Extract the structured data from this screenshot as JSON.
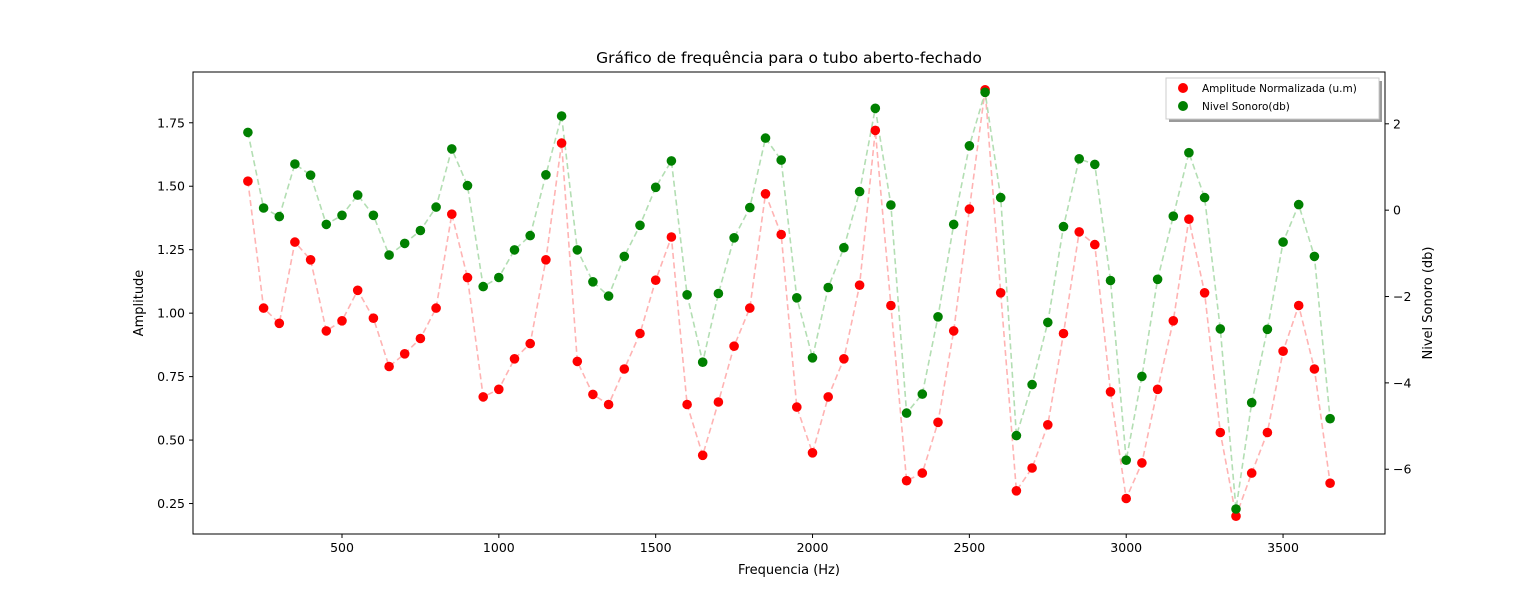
{
  "chart_data": {
    "type": "scatter",
    "title": "Gráfico de frequência para o tubo aberto-fechado",
    "xlabel": "Frequencia (Hz)",
    "ylabel": "Amplitude",
    "ylabel_right": "Nivel Sonoro (db)",
    "xlim": [
      25,
      3825
    ],
    "ylim": [
      0.13,
      1.95
    ],
    "ylim_right": [
      -7.5,
      3.2
    ],
    "x_ticks": [
      500,
      1000,
      1500,
      2000,
      2500,
      3000,
      3500
    ],
    "y_ticks": [
      0.25,
      0.5,
      0.75,
      1.0,
      1.25,
      1.5,
      1.75
    ],
    "y_ticks_right": [
      -6,
      -4,
      -2,
      0,
      2
    ],
    "x_tick_labels": [
      "500",
      "1000",
      "1500",
      "2000",
      "2500",
      "3000",
      "3500"
    ],
    "y_tick_labels": [
      "0.25",
      "0.50",
      "0.75",
      "1.00",
      "1.25",
      "1.50",
      "1.75"
    ],
    "y_tick_labels_right": [
      "−6",
      "−4",
      "−2",
      "0",
      "2"
    ],
    "grid": false,
    "legend_position": "top-right",
    "x": [
      200,
      250,
      300,
      350,
      400,
      450,
      500,
      550,
      600,
      650,
      700,
      750,
      800,
      850,
      900,
      950,
      1000,
      1050,
      1100,
      1150,
      1200,
      1250,
      1300,
      1350,
      1400,
      1450,
      1500,
      1550,
      1600,
      1650,
      1700,
      1750,
      1800,
      1850,
      1900,
      1950,
      2000,
      2050,
      2100,
      2150,
      2200,
      2250,
      2300,
      2350,
      2400,
      2450,
      2500,
      2550,
      2600,
      2650,
      2700,
      2750,
      2800,
      2850,
      2900,
      2950,
      3000,
      3050,
      3100,
      3150,
      3200,
      3250,
      3300,
      3350,
      3400,
      3450,
      3500,
      3550,
      3600,
      3650
    ],
    "series": [
      {
        "name": "Amplitude Normalizada (u.m)",
        "axis": "left",
        "color": "#ff0000",
        "line_color": "#ffb3b3",
        "values": [
          1.52,
          1.02,
          0.96,
          1.28,
          1.21,
          0.93,
          0.97,
          1.09,
          0.98,
          0.79,
          0.84,
          0.9,
          1.02,
          1.39,
          1.14,
          0.67,
          0.7,
          0.82,
          0.88,
          1.21,
          1.67,
          0.81,
          0.68,
          0.64,
          0.78,
          0.92,
          1.13,
          1.3,
          0.64,
          0.44,
          0.65,
          0.87,
          1.02,
          1.47,
          1.31,
          0.63,
          0.45,
          0.67,
          0.82,
          1.11,
          1.72,
          1.03,
          0.34,
          0.37,
          0.57,
          0.93,
          1.41,
          1.88,
          1.08,
          0.3,
          0.39,
          0.56,
          0.92,
          1.32,
          1.27,
          0.69,
          0.27,
          0.41,
          0.7,
          0.97,
          1.37,
          1.08,
          0.53,
          0.2,
          0.37,
          0.53,
          0.85,
          1.03,
          0.78,
          0.33
        ]
      },
      {
        "name": "Nivel Sonoro(db)",
        "axis": "right",
        "color": "#008000",
        "line_color": "#b3deb3",
        "values": [
          1.8,
          0.05,
          -0.15,
          1.07,
          0.81,
          -0.33,
          -0.12,
          0.35,
          -0.12,
          -1.04,
          -0.77,
          -0.47,
          0.07,
          1.42,
          0.57,
          -1.77,
          -1.56,
          -0.92,
          -0.59,
          0.82,
          2.18,
          -0.92,
          -1.66,
          -1.99,
          -1.07,
          -0.35,
          0.53,
          1.14,
          -1.96,
          -3.52,
          -1.93,
          -0.64,
          0.06,
          1.67,
          1.16,
          -2.03,
          -3.42,
          -1.79,
          -0.87,
          0.43,
          2.36,
          0.12,
          -4.7,
          -4.26,
          -2.47,
          -0.33,
          1.49,
          2.73,
          0.29,
          -5.22,
          -4.04,
          -2.6,
          -0.38,
          1.19,
          1.06,
          -1.63,
          -5.79,
          -3.85,
          -1.6,
          -0.14,
          1.33,
          0.29,
          -2.75,
          -6.92,
          -4.46,
          -2.76,
          -0.74,
          0.13,
          -1.07,
          -4.83
        ]
      }
    ]
  }
}
